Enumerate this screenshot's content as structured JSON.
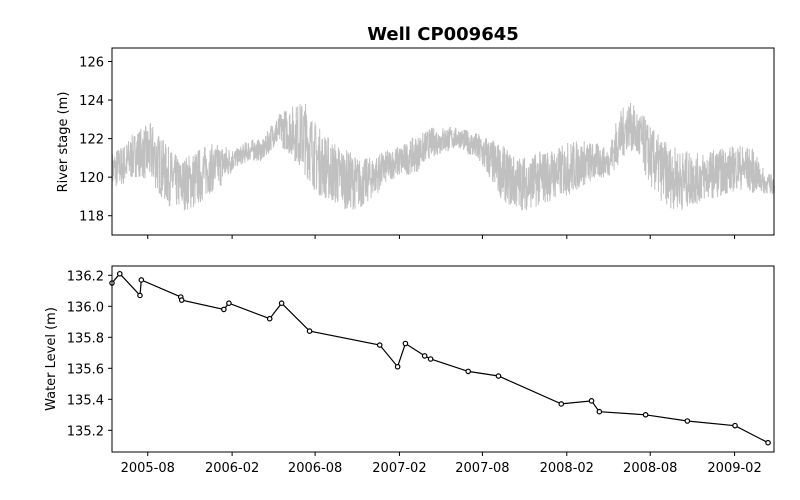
{
  "chart_data": [
    {
      "type": "line",
      "title": "Well CP009645",
      "ylabel": "River stage (m)",
      "ylim": [
        117.0,
        126.7
      ],
      "yticks": [
        118,
        120,
        122,
        124,
        126
      ],
      "color": "#c0c0c0",
      "series": [
        {
          "x": [
            "2005-05-15",
            "2005-06-10",
            "2005-07-10",
            "2005-08-10",
            "2005-09-10",
            "2005-10-10",
            "2005-11-10",
            "2005-12-10",
            "2006-01-10",
            "2006-02-10",
            "2006-03-10",
            "2006-04-10",
            "2006-05-01",
            "2006-05-20",
            "2006-06-10",
            "2006-07-10",
            "2006-08-05",
            "2006-09-10",
            "2006-10-10",
            "2006-11-10",
            "2006-12-10",
            "2007-01-10",
            "2007-02-10",
            "2007-03-10",
            "2007-04-10",
            "2007-05-10",
            "2007-06-10",
            "2007-07-10",
            "2007-08-10",
            "2007-09-10",
            "2007-10-10",
            "2007-11-10",
            "2007-12-10",
            "2008-01-10",
            "2008-02-10",
            "2008-03-10",
            "2008-04-10",
            "2008-05-01",
            "2008-05-25",
            "2008-06-15",
            "2008-07-10",
            "2008-08-10",
            "2008-09-10",
            "2008-10-10",
            "2008-11-10",
            "2008-12-10",
            "2009-01-10",
            "2009-02-10",
            "2009-03-10",
            "2009-04-10"
          ],
          "min": [
            119.3,
            119.5,
            120.0,
            119.5,
            118.5,
            118.2,
            118.2,
            119.0,
            119.5,
            120.5,
            120.8,
            120.8,
            121.5,
            121.5,
            121.0,
            120.0,
            119.0,
            118.5,
            118.2,
            118.3,
            119.0,
            119.8,
            120.0,
            120.2,
            121.0,
            121.2,
            121.5,
            121.0,
            120.0,
            118.8,
            118.2,
            118.2,
            118.5,
            118.8,
            119.0,
            119.5,
            119.8,
            120.0,
            120.5,
            121.5,
            120.5,
            119.0,
            118.3,
            118.2,
            118.5,
            118.8,
            119.0,
            119.3,
            119.1,
            119.1
          ],
          "max": [
            121.4,
            121.8,
            122.6,
            122.9,
            121.8,
            121.0,
            121.5,
            121.8,
            121.8,
            121.5,
            122.0,
            122.0,
            123.0,
            123.5,
            123.8,
            124.1,
            122.8,
            122.0,
            121.5,
            121.0,
            121.2,
            121.5,
            121.8,
            122.2,
            122.6,
            122.7,
            122.6,
            122.4,
            122.2,
            121.8,
            121.2,
            121.2,
            121.5,
            121.6,
            122.0,
            122.0,
            121.8,
            121.5,
            123.5,
            124.0,
            123.5,
            122.5,
            121.8,
            121.5,
            121.3,
            121.5,
            121.6,
            121.8,
            121.6,
            120.2
          ]
        }
      ]
    },
    {
      "type": "line",
      "ylabel": "Water Level (m)",
      "ylim": [
        135.06,
        136.26
      ],
      "yticks": [
        "135.2",
        "135.4",
        "135.6",
        "135.8",
        "136.0",
        "136.2"
      ],
      "xticks": [
        "2005-08",
        "2006-02",
        "2006-08",
        "2007-02",
        "2007-08",
        "2008-02",
        "2008-08",
        "2009-02"
      ],
      "color": "#000000",
      "series": [
        {
          "x": [
            "2005-05-15",
            "2005-06-01",
            "2005-07-15",
            "2005-07-18",
            "2005-10-12",
            "2005-10-14",
            "2006-01-14",
            "2006-01-25",
            "2006-04-24",
            "2006-05-20",
            "2006-07-20",
            "2006-12-20",
            "2007-01-28",
            "2007-02-14",
            "2007-03-28",
            "2007-04-10",
            "2007-07-01",
            "2007-09-05",
            "2008-01-20",
            "2008-03-26",
            "2008-04-12",
            "2008-07-22",
            "2008-10-21",
            "2009-02-02",
            "2009-04-15"
          ],
          "y": [
            136.15,
            136.21,
            136.07,
            136.17,
            136.06,
            136.04,
            135.98,
            136.02,
            135.92,
            136.02,
            135.84,
            135.75,
            135.61,
            135.76,
            135.68,
            135.66,
            135.58,
            135.55,
            135.37,
            135.39,
            135.32,
            135.3,
            135.26,
            135.23,
            135.12
          ]
        }
      ]
    }
  ]
}
